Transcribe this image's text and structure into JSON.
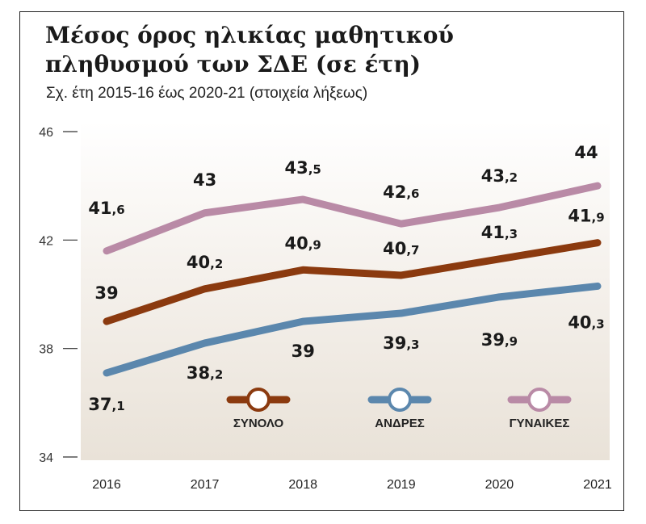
{
  "title": "Μέσος όρος ηλικίας μαθητικού πληθυσμού των ΣΔΕ (σε έτη)",
  "subtitle": "Σχ. έτη 2015-16 έως 2020-21 (στοιχεία λήξεως)",
  "chart_data": {
    "type": "line",
    "x": [
      "2016",
      "2017",
      "2018",
      "2019",
      "2020",
      "2021"
    ],
    "ylim": [
      34,
      46
    ],
    "yticks": [
      34,
      38,
      42,
      46
    ],
    "grid": false,
    "legend_position": "inside-bottom",
    "series": [
      {
        "name": "ΣΥΝΟΛΟ",
        "color": "#8b3a0f",
        "values": [
          39,
          40.2,
          40.9,
          40.7,
          41.3,
          41.9
        ],
        "labels": [
          {
            "int": "39",
            "dec": ""
          },
          {
            "int": "40",
            "dec": ",2"
          },
          {
            "int": "40",
            "dec": ",9"
          },
          {
            "int": "40",
            "dec": ",7"
          },
          {
            "int": "41",
            "dec": ",3"
          },
          {
            "int": "41",
            "dec": ",9"
          }
        ]
      },
      {
        "name": "ΑΝΔΡΕΣ",
        "color": "#5b87ad",
        "values": [
          37.1,
          38.2,
          39,
          39.3,
          39.9,
          40.3
        ],
        "labels": [
          {
            "int": "37",
            "dec": ",1"
          },
          {
            "int": "38",
            "dec": ",2"
          },
          {
            "int": "39",
            "dec": ""
          },
          {
            "int": "39",
            "dec": ",3"
          },
          {
            "int": "39",
            "dec": ",9"
          },
          {
            "int": "40",
            "dec": ",3"
          }
        ]
      },
      {
        "name": "ΓΥΝΑΙΚΕΣ",
        "color": "#b98aa6",
        "values": [
          41.6,
          43,
          43.5,
          42.6,
          43.2,
          44
        ],
        "labels": [
          {
            "int": "41",
            "dec": ",6"
          },
          {
            "int": "43",
            "dec": ""
          },
          {
            "int": "43",
            "dec": ",5"
          },
          {
            "int": "42",
            "dec": ",6"
          },
          {
            "int": "43",
            "dec": ",2"
          },
          {
            "int": "44",
            "dec": ""
          }
        ]
      }
    ]
  }
}
